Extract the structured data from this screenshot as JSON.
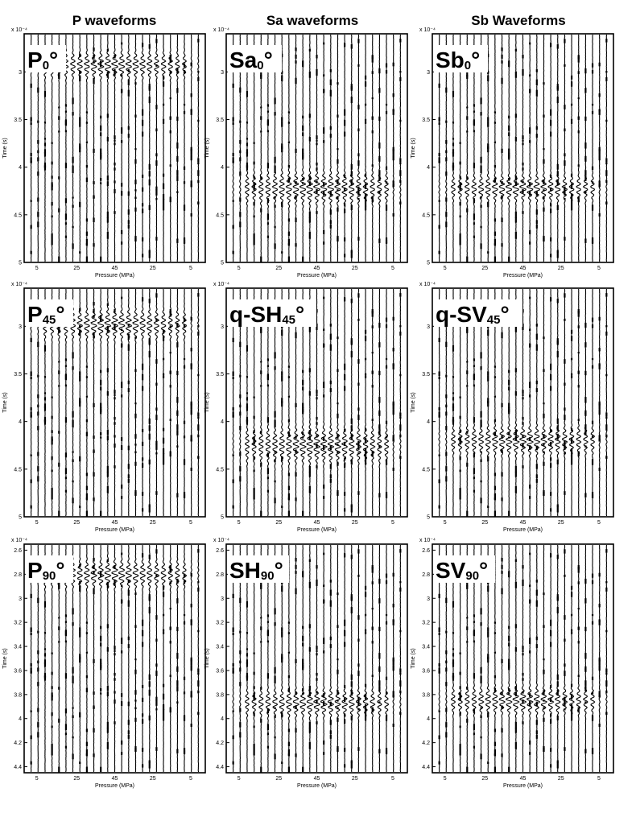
{
  "column_titles": [
    "P waveforms",
    "Sa waveforms",
    "Sb Waveforms"
  ],
  "chart_data": [
    {
      "type": "line",
      "label_main": "P",
      "label_sub": "0",
      "label_deg": "°",
      "exponent": "x 10⁻⁴",
      "ylabel": "Time (s)",
      "xlabel": "Pressure (MPa)",
      "ylim": [
        2.6,
        5
      ],
      "yticks": [
        "3",
        "3.5",
        "4",
        "4.5",
        "5"
      ],
      "ytick_values": [
        3,
        3.5,
        4,
        4.5,
        5
      ],
      "xticks": [
        "5",
        "25",
        "45",
        "25",
        "5"
      ],
      "traces": 25,
      "arrival": 2.93,
      "spread": 0.06
    },
    {
      "type": "line",
      "label_main": "Sa",
      "label_sub": "0",
      "label_deg": "°",
      "exponent": "x 10⁻⁴",
      "ylabel": "Time (s)",
      "xlabel": "Pressure (MPa)",
      "ylim": [
        2.6,
        5
      ],
      "yticks": [
        "3",
        "3.5",
        "4",
        "4.5",
        "5"
      ],
      "ytick_values": [
        3,
        3.5,
        4,
        4.5,
        5
      ],
      "xticks": [
        "5",
        "25",
        "45",
        "25",
        "5"
      ],
      "traces": 25,
      "arrival": 4.22,
      "spread": 0.08
    },
    {
      "type": "line",
      "label_main": "Sb",
      "label_sub": "0",
      "label_deg": "°",
      "exponent": "x 10⁻⁴",
      "ylabel": "Time (s)",
      "xlabel": "Pressure (MPa)",
      "ylim": [
        2.6,
        5
      ],
      "yticks": [
        "3",
        "3.5",
        "4",
        "4.5",
        "5"
      ],
      "ytick_values": [
        3,
        3.5,
        4,
        4.5,
        5
      ],
      "xticks": [
        "5",
        "25",
        "45",
        "25",
        "5"
      ],
      "traces": 25,
      "arrival": 4.22,
      "spread": 0.06
    },
    {
      "type": "line",
      "label_main": "P",
      "label_sub": "45",
      "label_deg": "°",
      "exponent": "x 10⁻⁴",
      "ylabel": "Time (s)",
      "xlabel": "Pressure (MPa)",
      "ylim": [
        2.6,
        5
      ],
      "yticks": [
        "3",
        "3.5",
        "4",
        "4.5",
        "5"
      ],
      "ytick_values": [
        3,
        3.5,
        4,
        4.5,
        5
      ],
      "xticks": [
        "5",
        "25",
        "45",
        "25",
        "5"
      ],
      "traces": 25,
      "arrival": 2.98,
      "spread": 0.07
    },
    {
      "type": "line",
      "label_main": "q-SH",
      "label_sub": "45",
      "label_deg": "°",
      "exponent": "x 10⁻⁴",
      "ylabel": "Time (s)",
      "xlabel": "Pressure (MPa)",
      "ylim": [
        2.6,
        5
      ],
      "yticks": [
        "3",
        "3.5",
        "4",
        "4.5",
        "5"
      ],
      "ytick_values": [
        3,
        3.5,
        4,
        4.5,
        5
      ],
      "xticks": [
        "5",
        "25",
        "45",
        "25",
        "5"
      ],
      "traces": 25,
      "arrival": 4.25,
      "spread": 0.09
    },
    {
      "type": "line",
      "label_main": "q-SV",
      "label_sub": "45",
      "label_deg": "°",
      "exponent": "x 10⁻⁴",
      "ylabel": "Time (s)",
      "xlabel": "Pressure (MPa)",
      "ylim": [
        2.6,
        5
      ],
      "yticks": [
        "3",
        "3.5",
        "4",
        "4.5",
        "5"
      ],
      "ytick_values": [
        3,
        3.5,
        4,
        4.5,
        5
      ],
      "xticks": [
        "5",
        "25",
        "45",
        "25",
        "5"
      ],
      "traces": 25,
      "arrival": 4.2,
      "spread": 0.07
    },
    {
      "type": "line",
      "label_main": "P",
      "label_sub": "90",
      "label_deg": "°",
      "exponent": "x 10⁻⁴",
      "ylabel": "Time (s)",
      "xlabel": "Pressure (MPa)",
      "ylim": [
        2.55,
        4.45
      ],
      "yticks": [
        "2.6",
        "2.8",
        "3",
        "3.2",
        "3.4",
        "3.6",
        "3.8",
        "4",
        "4.2",
        "4.4"
      ],
      "ytick_values": [
        2.6,
        2.8,
        3,
        3.2,
        3.4,
        3.6,
        3.8,
        4,
        4.2,
        4.4
      ],
      "xticks": [
        "5",
        "25",
        "45",
        "25",
        "5"
      ],
      "traces": 25,
      "arrival": 2.8,
      "spread": 0.05
    },
    {
      "type": "line",
      "label_main": "SH",
      "label_sub": "90",
      "label_deg": "°",
      "exponent": "x 10⁻⁴",
      "ylabel": "Time (s)",
      "xlabel": "Pressure (MPa)",
      "ylim": [
        2.55,
        4.45
      ],
      "yticks": [
        "2.6",
        "2.8",
        "3",
        "3.2",
        "3.4",
        "3.6",
        "3.8",
        "4",
        "4.2",
        "4.4"
      ],
      "ytick_values": [
        2.6,
        2.8,
        3,
        3.2,
        3.4,
        3.6,
        3.8,
        4,
        4.2,
        4.4
      ],
      "xticks": [
        "5",
        "25",
        "45",
        "25",
        "5"
      ],
      "traces": 25,
      "arrival": 3.87,
      "spread": 0.05
    },
    {
      "type": "line",
      "label_main": "SV",
      "label_sub": "90",
      "label_deg": "°",
      "exponent": "x 10⁻⁴",
      "ylabel": "Time (s)",
      "xlabel": "Pressure (MPa)",
      "ylim": [
        2.55,
        4.45
      ],
      "yticks": [
        "2.6",
        "2.8",
        "3",
        "3.2",
        "3.4",
        "3.6",
        "3.8",
        "4",
        "4.2",
        "4.4"
      ],
      "ytick_values": [
        2.6,
        2.8,
        3,
        3.2,
        3.4,
        3.6,
        3.8,
        4,
        4.2,
        4.4
      ],
      "xticks": [
        "5",
        "25",
        "45",
        "25",
        "5"
      ],
      "traces": 25,
      "arrival": 3.85,
      "spread": 0.05
    }
  ]
}
